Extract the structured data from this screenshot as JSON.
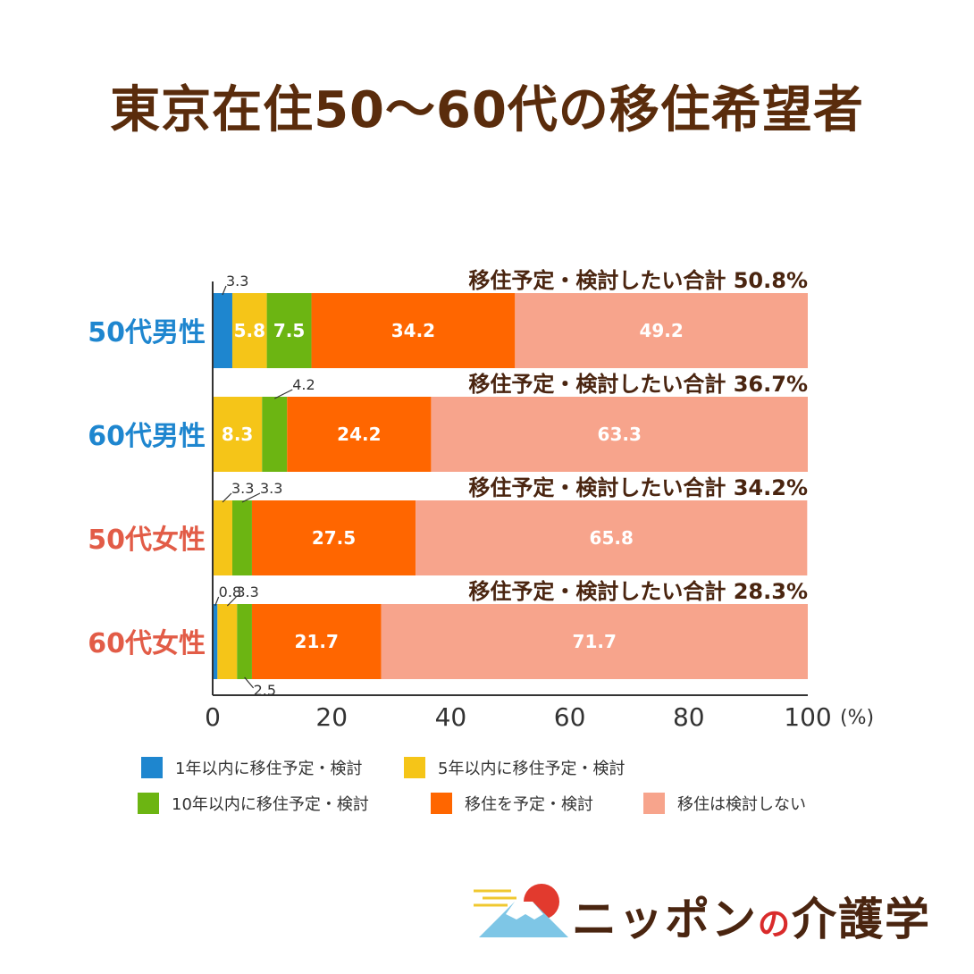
{
  "title": "東京在住50〜60代の移住希望者",
  "chart_data": {
    "type": "bar",
    "orientation": "horizontal",
    "stacked": true,
    "xlim": [
      0,
      100
    ],
    "xticks": [
      "0",
      "20",
      "40",
      "60",
      "80",
      "100"
    ],
    "xunit": "(%)",
    "categories": [
      "50代男性",
      "60代男性",
      "50代女性",
      "60代女性"
    ],
    "category_colors": [
      "#1e86cf",
      "#1e86cf",
      "#e25c47",
      "#e25c47"
    ],
    "totals": [
      "移住予定・検討したい合計 50.8%",
      "移住予定・検討したい合計 36.7%",
      "移住予定・検討したい合計 34.2%",
      "移住予定・検討したい合計 28.3%"
    ],
    "series": [
      {
        "name": "1年以内に移住予定・検討",
        "color": "#1e86cf",
        "values": [
          3.3,
          0,
          0,
          0.8
        ]
      },
      {
        "name": "5年以内に移住予定・検討",
        "color": "#f5c518",
        "values": [
          5.8,
          8.3,
          3.3,
          3.3
        ]
      },
      {
        "name": "10年以内に移住予定・検討",
        "color": "#6cb512",
        "values": [
          7.5,
          4.2,
          3.3,
          2.5
        ]
      },
      {
        "name": "移住を予定・検討",
        "color": "#ff6600",
        "values": [
          34.2,
          24.2,
          27.5,
          21.7
        ]
      },
      {
        "name": "移住は検討しない",
        "color": "#f7a48c",
        "values": [
          49.2,
          63.3,
          65.8,
          71.7
        ]
      }
    ]
  },
  "logo": {
    "text_1": "ニッポン",
    "text_no": "の",
    "text_2": "介護学"
  }
}
